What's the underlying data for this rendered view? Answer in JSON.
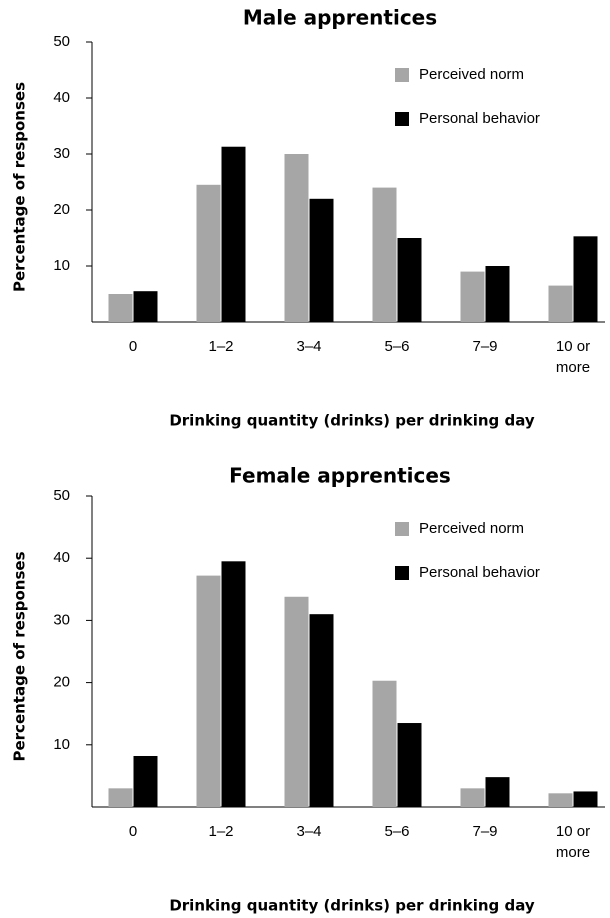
{
  "chart_data": [
    {
      "type": "bar",
      "title": "Male apprentices",
      "xlabel": "Drinking quantity (drinks) per drinking day",
      "ylabel": "Percentage of responses",
      "categories": [
        "0",
        "1–2",
        "3–4",
        "5–6",
        "7–9",
        "10 or more"
      ],
      "series": [
        {
          "name": "Perceived norm",
          "color": "#a6a6a6",
          "values": [
            5,
            24.5,
            30,
            24,
            9,
            6.5
          ]
        },
        {
          "name": "Personal behavior",
          "color": "#000000",
          "values": [
            5.5,
            31.3,
            22,
            15,
            10,
            15.3
          ]
        }
      ],
      "ylim": [
        0,
        50
      ],
      "yticks": [
        10,
        20,
        30,
        40,
        50
      ],
      "legend": "upper right"
    },
    {
      "type": "bar",
      "title": "Female apprentices",
      "xlabel": "Drinking quantity (drinks) per drinking day",
      "ylabel": "Percentage of responses",
      "categories": [
        "0",
        "1–2",
        "3–4",
        "5–6",
        "7–9",
        "10 or more"
      ],
      "series": [
        {
          "name": "Perceived norm",
          "color": "#a6a6a6",
          "values": [
            3,
            37.2,
            33.8,
            20.3,
            3,
            2.2
          ]
        },
        {
          "name": "Personal behavior",
          "color": "#000000",
          "values": [
            8.2,
            39.5,
            31,
            13.5,
            4.8,
            2.5
          ]
        }
      ],
      "ylim": [
        0,
        50
      ],
      "yticks": [
        10,
        20,
        30,
        40,
        50
      ],
      "legend": "upper right"
    }
  ]
}
